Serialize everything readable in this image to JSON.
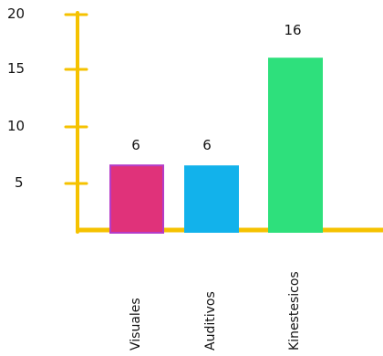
{
  "chart_data": {
    "type": "bar",
    "categories": [
      "Visuales",
      "Auditivos",
      "Kinestesicos"
    ],
    "values": [
      6,
      6,
      16
    ],
    "data_labels": [
      "6",
      "6",
      "16"
    ],
    "y_ticks": [
      "5",
      "10",
      "15",
      "20"
    ],
    "ylim": [
      0,
      20
    ],
    "grid": false,
    "legend": "none",
    "axis_color": "#f5c200",
    "bar_colors": [
      "#e0327a",
      "#12b2eb",
      "#2ee07c"
    ],
    "title": "",
    "xlabel": "",
    "ylabel": ""
  }
}
